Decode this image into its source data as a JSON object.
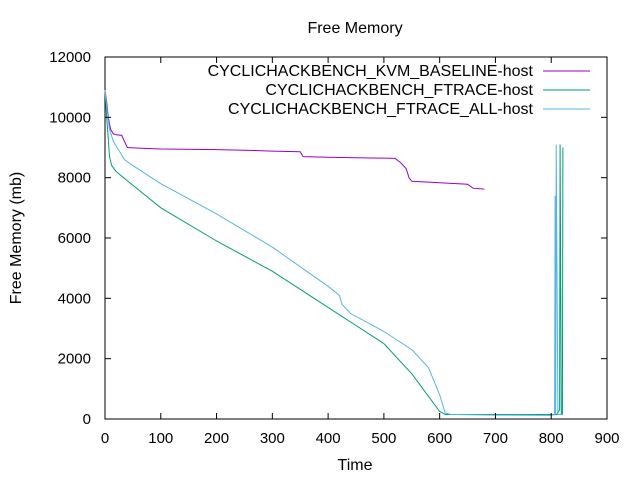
{
  "chart_data": {
    "type": "line",
    "title": "Free Memory",
    "xlabel": "Time",
    "ylabel": "Free Memory (mb)",
    "xlim": [
      0,
      900
    ],
    "ylim": [
      0,
      12000
    ],
    "xticks": [
      0,
      100,
      200,
      300,
      400,
      500,
      600,
      700,
      800,
      900
    ],
    "yticks": [
      0,
      2000,
      4000,
      6000,
      8000,
      10000,
      12000
    ],
    "grid": false,
    "legend_position": "top-right",
    "series": [
      {
        "name": "CYCLICHACKBENCH_KVM_BASELINE-host",
        "color": "#9400d3",
        "points": [
          [
            0,
            10900
          ],
          [
            3,
            10500
          ],
          [
            6,
            10000
          ],
          [
            10,
            9600
          ],
          [
            15,
            9450
          ],
          [
            20,
            9420
          ],
          [
            30,
            9400
          ],
          [
            40,
            9000
          ],
          [
            60,
            8980
          ],
          [
            100,
            8950
          ],
          [
            200,
            8930
          ],
          [
            250,
            8910
          ],
          [
            300,
            8880
          ],
          [
            350,
            8860
          ],
          [
            355,
            8700
          ],
          [
            400,
            8680
          ],
          [
            450,
            8660
          ],
          [
            500,
            8650
          ],
          [
            520,
            8640
          ],
          [
            530,
            8500
          ],
          [
            540,
            8300
          ],
          [
            545,
            8000
          ],
          [
            550,
            7880
          ],
          [
            600,
            7830
          ],
          [
            650,
            7780
          ],
          [
            660,
            7650
          ],
          [
            680,
            7620
          ]
        ]
      },
      {
        "name": "CYCLICHACKBENCH_FTRACE-host",
        "color": "#009e73",
        "points": [
          [
            0,
            10900
          ],
          [
            3,
            10000
          ],
          [
            5,
            9500
          ],
          [
            8,
            8700
          ],
          [
            12,
            8400
          ],
          [
            20,
            8200
          ],
          [
            40,
            7900
          ],
          [
            100,
            7000
          ],
          [
            200,
            5900
          ],
          [
            300,
            4900
          ],
          [
            400,
            3700
          ],
          [
            450,
            3100
          ],
          [
            500,
            2500
          ],
          [
            550,
            1500
          ],
          [
            600,
            250
          ],
          [
            610,
            150
          ],
          [
            700,
            150
          ],
          [
            810,
            150
          ],
          [
            815,
            300
          ],
          [
            816,
            9100
          ],
          [
            818,
            150
          ],
          [
            820,
            150
          ],
          [
            821,
            9000
          ]
        ]
      },
      {
        "name": "CYCLICHACKBENCH_FTRACE_ALL-host",
        "color": "#56b4e9",
        "points": [
          [
            0,
            10900
          ],
          [
            4,
            10200
          ],
          [
            8,
            9600
          ],
          [
            15,
            9200
          ],
          [
            25,
            8900
          ],
          [
            35,
            8600
          ],
          [
            50,
            8400
          ],
          [
            100,
            7800
          ],
          [
            200,
            6800
          ],
          [
            300,
            5700
          ],
          [
            400,
            4400
          ],
          [
            420,
            4100
          ],
          [
            425,
            3800
          ],
          [
            440,
            3500
          ],
          [
            500,
            2900
          ],
          [
            550,
            2300
          ],
          [
            580,
            1700
          ],
          [
            600,
            800
          ],
          [
            610,
            200
          ],
          [
            620,
            150
          ],
          [
            700,
            130
          ],
          [
            800,
            120
          ],
          [
            806,
            150
          ],
          [
            807,
            7400
          ],
          [
            808,
            150
          ],
          [
            809,
            9100
          ],
          [
            812,
            150
          ],
          [
            820,
            150
          ]
        ]
      }
    ]
  }
}
